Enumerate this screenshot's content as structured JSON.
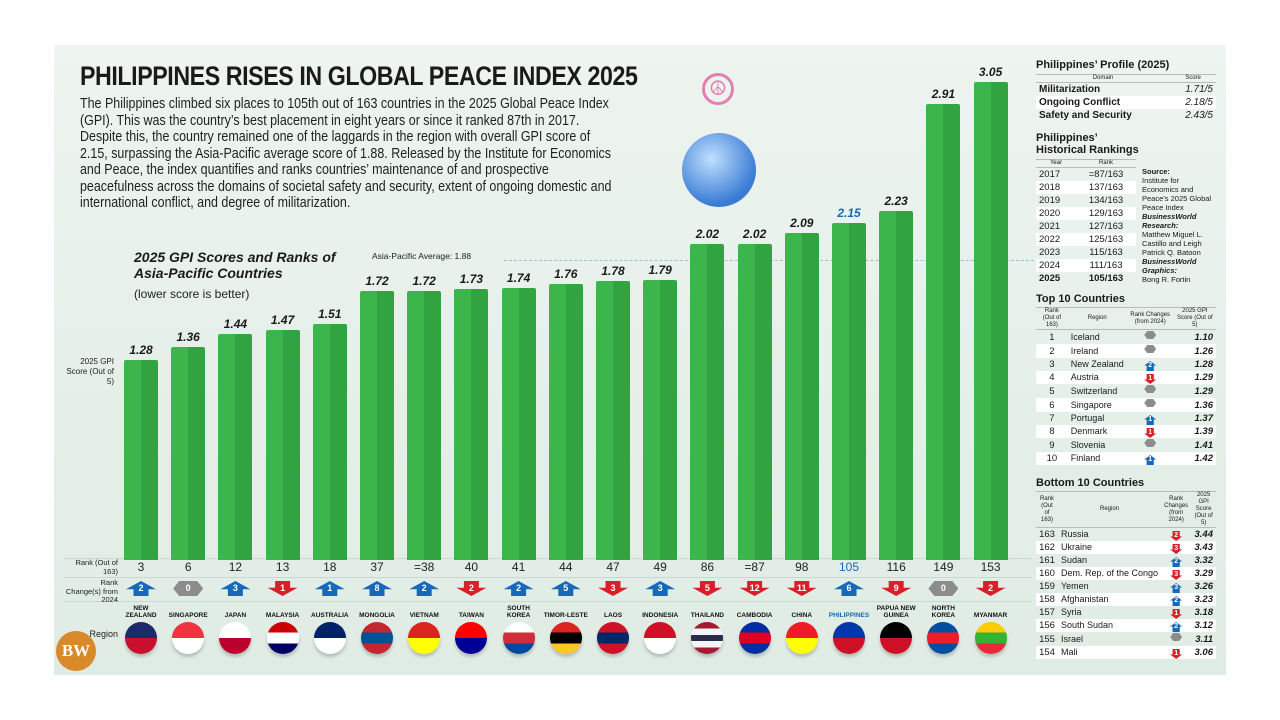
{
  "title": "PHILIPPINES RISES IN GLOBAL PEACE INDEX 2025",
  "intro": "The Philippines climbed six places to 105th out of 163 countries in the 2025 Global Peace Index (GPI). This was the country’s best placement in eight years or since it ranked 87th in 2017. Despite this, the country remained one of the laggards in the region with overall GPI score of 2.15, surpassing the Asia-Pacific average score of 1.88. Released by the Institute for Economics and Peace, the index quantifies and ranks countries’ maintenance of and prospective peacefulness across the domains of societal safety and security, extent of ongoing domestic and international conflict, and degree of militarization.",
  "logo": "BW",
  "colors": {
    "bar": "#3cb64a",
    "up": "#1569b8",
    "down": "#d7202b",
    "same": "#8c8c8c",
    "highlight": "#1569b8"
  },
  "chart_data": {
    "type": "bar",
    "title": "2025 GPI Scores and Ranks of Asia-Pacific Countries",
    "subtitle": "(lower score is better)",
    "ylabel": "2025 GPI Score (Out of 5)",
    "ylim": [
      0,
      3.05
    ],
    "grid": false,
    "reference_line": {
      "label": "Asia-Pacific Average: 1.88",
      "value": 1.88
    },
    "row_labels": {
      "rank": "Rank (Out of 163)",
      "change": "Rank Change(s) from 2024",
      "region": "Region"
    },
    "categories": [
      "NEW ZEALAND",
      "SINGAPORE",
      "JAPAN",
      "MALAYSIA",
      "AUSTRALIA",
      "MONGOLIA",
      "VIETNAM",
      "TAIWAN",
      "SOUTH KOREA",
      "TIMOR-LESTE",
      "LAOS",
      "INDONESIA",
      "THAILAND",
      "CAMBODIA",
      "CHINA",
      "PHILIPPINES",
      "PAPUA NEW GUINEA",
      "NORTH KOREA",
      "MYANMAR"
    ],
    "values": [
      1.28,
      1.36,
      1.44,
      1.47,
      1.51,
      1.72,
      1.72,
      1.73,
      1.74,
      1.76,
      1.78,
      1.79,
      2.02,
      2.02,
      2.09,
      2.15,
      2.23,
      2.91,
      3.05
    ],
    "ranks": [
      "3",
      "6",
      "12",
      "13",
      "18",
      "37",
      "=38",
      "40",
      "41",
      "44",
      "47",
      "49",
      "86",
      "=87",
      "98",
      "105",
      "116",
      "149",
      "153"
    ],
    "rank_changes": [
      {
        "dir": "up",
        "n": "2"
      },
      {
        "dir": "same",
        "n": "0"
      },
      {
        "dir": "up",
        "n": "3"
      },
      {
        "dir": "down",
        "n": "1"
      },
      {
        "dir": "up",
        "n": "1"
      },
      {
        "dir": "up",
        "n": "8"
      },
      {
        "dir": "up",
        "n": "2"
      },
      {
        "dir": "down",
        "n": "2"
      },
      {
        "dir": "up",
        "n": "2"
      },
      {
        "dir": "up",
        "n": "5"
      },
      {
        "dir": "down",
        "n": "3"
      },
      {
        "dir": "up",
        "n": "3"
      },
      {
        "dir": "down",
        "n": "5"
      },
      {
        "dir": "down",
        "n": "12"
      },
      {
        "dir": "down",
        "n": "11"
      },
      {
        "dir": "up",
        "n": "6"
      },
      {
        "dir": "down",
        "n": "9"
      },
      {
        "dir": "same",
        "n": "0"
      },
      {
        "dir": "down",
        "n": "2"
      }
    ],
    "highlight": "PHILIPPINES",
    "flag_colors": [
      [
        "#1b2a6b",
        "#c8102e"
      ],
      [
        "#ef3340",
        "#ffffff"
      ],
      [
        "#ffffff",
        "#bc002d"
      ],
      [
        "#cc0001",
        "#ffffff",
        "#010066"
      ],
      [
        "#012169",
        "#ffffff"
      ],
      [
        "#c4272f",
        "#015197",
        "#c4272f"
      ],
      [
        "#da251d",
        "#ffff00"
      ],
      [
        "#fe0000",
        "#000095"
      ],
      [
        "#ffffff",
        "#cd2e3a",
        "#0047a0"
      ],
      [
        "#dc241f",
        "#000000",
        "#ffc726"
      ],
      [
        "#ce1126",
        "#002868",
        "#ce1126"
      ],
      [
        "#ce1126",
        "#ffffff"
      ],
      [
        "#a51931",
        "#f4f5f8",
        "#2d2a4a",
        "#f4f5f8",
        "#a51931"
      ],
      [
        "#032ea1",
        "#e00025",
        "#032ea1"
      ],
      [
        "#ee1c25",
        "#ffff00"
      ],
      [
        "#0038a8",
        "#ce1126"
      ],
      [
        "#000000",
        "#ce1126"
      ],
      [
        "#024fa2",
        "#ed1c27",
        "#024fa2"
      ],
      [
        "#fecb00",
        "#34b233",
        "#ea2839"
      ]
    ]
  },
  "profile": {
    "heading": "Philippines’ Profile (2025)",
    "col_domain": "Domain",
    "col_score": "Score",
    "rows": [
      [
        "Militarization",
        "1.71/5"
      ],
      [
        "Ongoing Conflict",
        "2.18/5"
      ],
      [
        "Safety and Security",
        "2.43/5"
      ]
    ]
  },
  "history": {
    "heading": "Philippines’ Historical Rankings",
    "col_year": "Year",
    "col_rank": "Rank",
    "rows": [
      [
        "2017",
        "=87/163"
      ],
      [
        "2018",
        "137/163"
      ],
      [
        "2019",
        "134/163"
      ],
      [
        "2020",
        "129/163"
      ],
      [
        "2021",
        "127/163"
      ],
      [
        "2022",
        "125/163"
      ],
      [
        "2023",
        "115/163"
      ],
      [
        "2024",
        "111/163"
      ],
      [
        "2025",
        "105/163"
      ]
    ],
    "credits": {
      "source_label": "Source:",
      "source": "Institute for Economics and Peace’s 2025 Global Peace Index",
      "research_label": "BusinessWorld Research:",
      "research": "Matthew Miguel L. Castillo and Leigh Patrick Q. Batoon",
      "graphics_label": "BusinessWorld Graphics:",
      "graphics": "Bong R. Fortin"
    }
  },
  "top10": {
    "heading": "Top 10 Countries",
    "cols": [
      "Rank (Out of 163)",
      "Region",
      "Rank Changes (from 2024)",
      "2025 GPI Score (Out of 5)"
    ],
    "rows": [
      [
        "1",
        "Iceland",
        "same",
        "",
        "1.10"
      ],
      [
        "2",
        "Ireland",
        "same",
        "",
        "1.26"
      ],
      [
        "3",
        "New Zealand",
        "up",
        "2",
        "1.28"
      ],
      [
        "4",
        "Austria",
        "down",
        "1",
        "1.29"
      ],
      [
        "5",
        "Switzerland",
        "same",
        "",
        "1.29"
      ],
      [
        "6",
        "Singapore",
        "same",
        "",
        "1.36"
      ],
      [
        "7",
        "Portugal",
        "up",
        "1",
        "1.37"
      ],
      [
        "8",
        "Denmark",
        "down",
        "1",
        "1.39"
      ],
      [
        "9",
        "Slovenia",
        "same",
        "",
        "1.41"
      ],
      [
        "10",
        "Finland",
        "up",
        "1",
        "1.42"
      ]
    ]
  },
  "bottom10": {
    "heading": "Bottom 10 Countries",
    "cols": [
      "Rank (Out of 163)",
      "Region",
      "Rank Changes (from 2024)",
      "2025 GPI Score (Out of 5)"
    ],
    "rows": [
      [
        "163",
        "Russia",
        "down",
        "2",
        "3.44"
      ],
      [
        "162",
        "Ukraine",
        "down",
        "3",
        "3.43"
      ],
      [
        "161",
        "Sudan",
        "up",
        "2",
        "3.32"
      ],
      [
        "160",
        "Dem. Rep. of the Congo",
        "down",
        "3",
        "3.29"
      ],
      [
        "159",
        "Yemen",
        "up",
        "3",
        "3.26"
      ],
      [
        "158",
        "Afghanistan",
        "up",
        "2",
        "3.23"
      ],
      [
        "157",
        "Syria",
        "down",
        "1",
        "3.18"
      ],
      [
        "156",
        "South Sudan",
        "up",
        "2",
        "3.12"
      ],
      [
        "155",
        "Israel",
        "same",
        "",
        "3.11"
      ],
      [
        "154",
        "Mali",
        "down",
        "1",
        "3.06"
      ]
    ]
  }
}
